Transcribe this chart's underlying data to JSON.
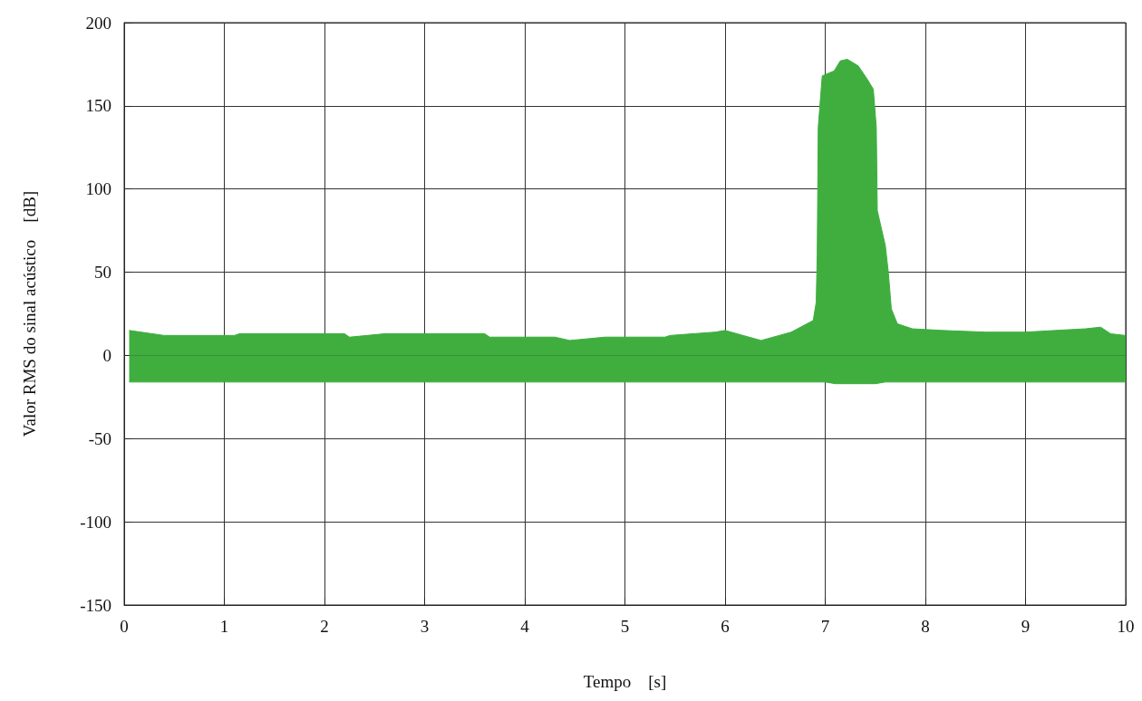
{
  "chart_data": {
    "type": "area",
    "xlabel": "Tempo    [s]",
    "ylabel": "Valor RMS do sinal acústico    [dB]",
    "xlim": [
      0,
      10
    ],
    "xticks": [
      0,
      1,
      2,
      3,
      4,
      5,
      6,
      7,
      8,
      9,
      10
    ],
    "ylim": [
      -150,
      200
    ],
    "yticks": [
      -150,
      -100,
      -50,
      0,
      50,
      100,
      150,
      200
    ],
    "grid": true,
    "series": [
      {
        "color": "#3fae3f",
        "x": [
          0.05,
          0.4,
          1.1,
          1.15,
          2.2,
          2.25,
          2.6,
          3.6,
          3.65,
          4.3,
          4.45,
          4.8,
          5.4,
          5.45,
          5.9,
          6.0,
          6.18,
          6.36,
          6.54,
          6.66,
          6.88,
          6.91,
          6.92,
          6.93,
          6.97,
          7.09,
          7.15,
          7.22,
          7.33,
          7.42,
          7.48,
          7.51,
          7.52,
          7.6,
          7.63,
          7.66,
          7.72,
          7.87,
          8.17,
          8.6,
          9.0,
          9.3,
          9.6,
          9.75,
          9.85,
          10.0
        ],
        "values": [
          15,
          12,
          12,
          13,
          13,
          11,
          13,
          13,
          11,
          11,
          9,
          11,
          11,
          12,
          14,
          15,
          12,
          9,
          12,
          14,
          21,
          32,
          61,
          137,
          168,
          171,
          177,
          178,
          174,
          166,
          160,
          137,
          87,
          66,
          50,
          28,
          19,
          16,
          15,
          14,
          14,
          15,
          16,
          17,
          13,
          12
        ]
      },
      {
        "color": "#3fae3f",
        "x": [
          0.05,
          7.0,
          7.1,
          7.5,
          7.6,
          10.0
        ],
        "values": [
          -16,
          -16,
          -17,
          -17,
          -16,
          -16
        ]
      }
    ]
  }
}
